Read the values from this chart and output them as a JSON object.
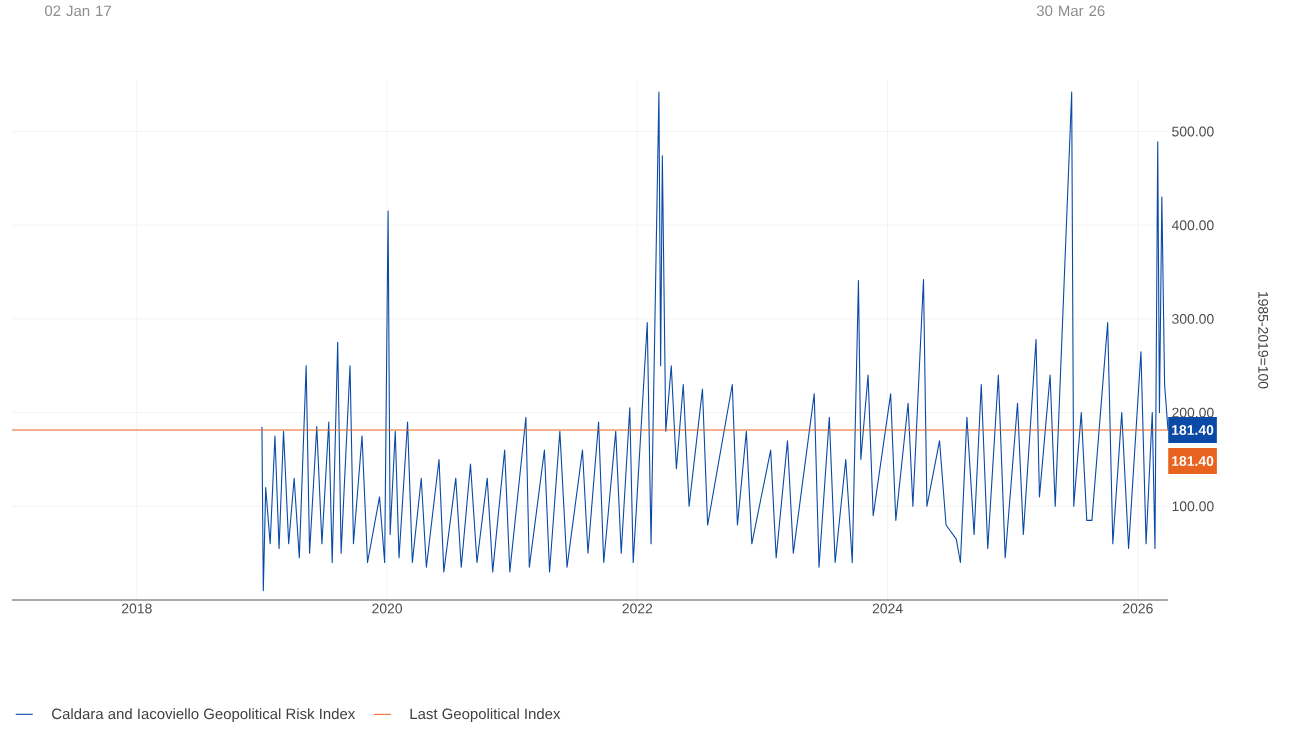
{
  "chart_data": {
    "type": "line",
    "ylabel": "1985-2019=100",
    "xlim": [
      "2017-01-02",
      "2026-03-30"
    ],
    "xticks": [
      "2018",
      "2020",
      "2022",
      "2024",
      "2026"
    ],
    "ylim": [
      0,
      555
    ],
    "yticks": [
      {
        "value": 100,
        "label": "100.00"
      },
      {
        "value": 200,
        "label": "200.00"
      },
      {
        "value": 300,
        "label": "300.00"
      },
      {
        "value": 400,
        "label": "400.00"
      },
      {
        "value": 500,
        "label": "500.00"
      }
    ],
    "grid": true,
    "legend": "bottom",
    "annotations": [
      "02 Jan 17",
      "30 Mar 26",
      {
        "text": "181.40",
        "x": "2026-03-30",
        "y": 181.4
      }
    ],
    "series": [
      {
        "name": "Caldara and Iacoviello Geopolitical Risk Index",
        "color": "#0a4aa6",
        "x": [
          "2019-01-01",
          "2019-01-05",
          "2019-01-12",
          "2019-01-25",
          "2019-02-08",
          "2019-02-20",
          "2019-03-05",
          "2019-03-20",
          "2019-04-05",
          "2019-04-20",
          "2019-05-10",
          "2019-05-20",
          "2019-06-10",
          "2019-06-25",
          "2019-07-15",
          "2019-07-25",
          "2019-08-10",
          "2019-08-20",
          "2019-09-15",
          "2019-09-25",
          "2019-10-20",
          "2019-11-05",
          "2019-12-10",
          "2019-12-25",
          "2020-01-04",
          "2020-01-10",
          "2020-01-25",
          "2020-02-05",
          "2020-03-01",
          "2020-03-15",
          "2020-04-10",
          "2020-04-25",
          "2020-06-01",
          "2020-06-15",
          "2020-07-20",
          "2020-08-05",
          "2020-09-01",
          "2020-09-20",
          "2020-10-20",
          "2020-11-05",
          "2020-12-10",
          "2020-12-25",
          "2021-02-10",
          "2021-02-20",
          "2021-04-05",
          "2021-04-20",
          "2021-05-20",
          "2021-06-10",
          "2021-07-25",
          "2021-08-10",
          "2021-09-10",
          "2021-09-25",
          "2021-10-30",
          "2021-11-15",
          "2021-12-10",
          "2021-12-20",
          "2022-01-30",
          "2022-02-10",
          "2022-03-05",
          "2022-03-10",
          "2022-03-15",
          "2022-03-25",
          "2022-04-10",
          "2022-04-25",
          "2022-05-15",
          "2022-06-01",
          "2022-07-10",
          "2022-07-25",
          "2022-10-05",
          "2022-10-20",
          "2022-11-15",
          "2022-12-01",
          "2023-01-25",
          "2023-02-10",
          "2023-03-15",
          "2023-04-01",
          "2023-06-01",
          "2023-06-15",
          "2023-07-15",
          "2023-08-01",
          "2023-09-01",
          "2023-09-20",
          "2023-10-08",
          "2023-10-15",
          "2023-11-05",
          "2023-11-20",
          "2024-01-10",
          "2024-01-25",
          "2024-03-01",
          "2024-03-15",
          "2024-04-15",
          "2024-04-25",
          "2024-06-01",
          "2024-06-20",
          "2024-07-20",
          "2024-08-01",
          "2024-08-20",
          "2024-09-10",
          "2024-10-01",
          "2024-10-20",
          "2024-11-20",
          "2024-12-10",
          "2025-01-15",
          "2025-02-01",
          "2025-03-10",
          "2025-03-20",
          "2025-04-20",
          "2025-05-05",
          "2025-06-22",
          "2025-06-28",
          "2025-07-20",
          "2025-08-05",
          "2025-08-20",
          "2025-10-05",
          "2025-10-20",
          "2025-11-15",
          "2025-12-05",
          "2026-01-10",
          "2026-01-25",
          "2026-02-12",
          "2026-02-20",
          "2026-02-28",
          "2026-03-05",
          "2026-03-12",
          "2026-03-20",
          "2026-03-30"
        ],
        "values": [
          185,
          10,
          120,
          60,
          175,
          55,
          180,
          60,
          130,
          45,
          250,
          50,
          185,
          60,
          190,
          40,
          275,
          50,
          250,
          60,
          175,
          40,
          110,
          40,
          415,
          70,
          180,
          45,
          190,
          40,
          130,
          35,
          150,
          30,
          130,
          35,
          145,
          40,
          130,
          30,
          160,
          30,
          195,
          35,
          160,
          30,
          180,
          35,
          160,
          50,
          190,
          40,
          180,
          50,
          205,
          40,
          296,
          60,
          542,
          250,
          474,
          180,
          250,
          140,
          230,
          100,
          225,
          80,
          230,
          80,
          180,
          60,
          160,
          45,
          170,
          50,
          220,
          35,
          195,
          40,
          150,
          40,
          341,
          150,
          240,
          90,
          220,
          85,
          210,
          100,
          342,
          100,
          170,
          80,
          65,
          40,
          195,
          70,
          230,
          55,
          240,
          45,
          210,
          70,
          278,
          110,
          240,
          100,
          542,
          100,
          200,
          85,
          85,
          296,
          60,
          200,
          55,
          265,
          60,
          200,
          55,
          489,
          200,
          430,
          230,
          181.4
        ]
      },
      {
        "name": "Last Geopolitical Index",
        "color": "#e8631f",
        "x": [
          "2017-01-02",
          "2026-03-30"
        ],
        "values": [
          181.4,
          181.4
        ],
        "value_labels": [
          null,
          "181.40"
        ]
      }
    ]
  }
}
